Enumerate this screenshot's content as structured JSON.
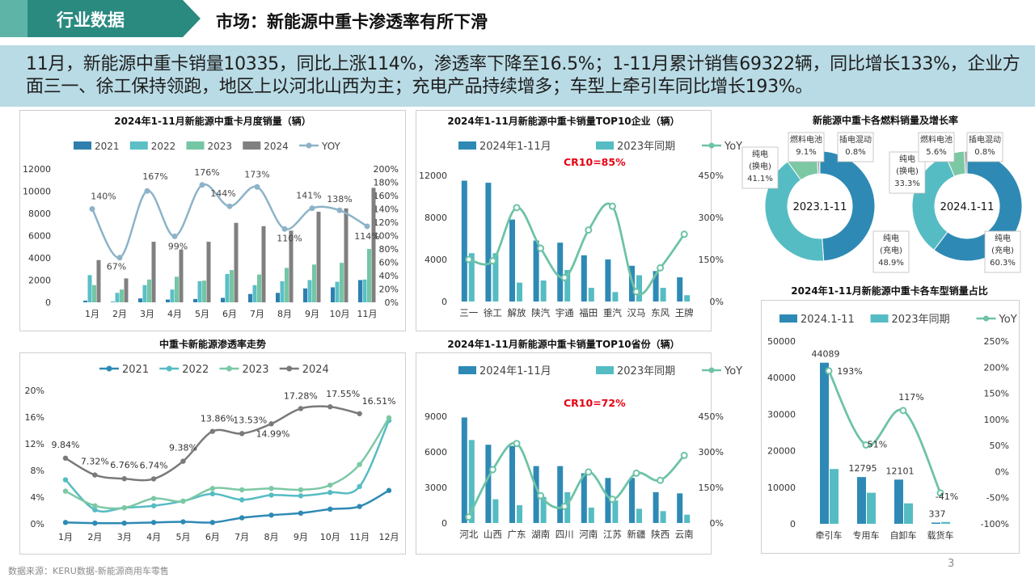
{
  "header": {
    "section_tag": "行业数据",
    "title": "市场：新能源中重卡渗透率有所下滑"
  },
  "summary": "11月，新能源中重卡销量10335，同比上涨114%，渗透率下降至16.5%；1-11月累计销售69322辆，同比增长133%，企业方面三一、徐工保持领跑，地区上以河北山西为主；充电产品持续增多；车型上牵引车同比增长193%。",
  "footer": {
    "source": "数据来源：KERU数据-新能源商用车零售",
    "page": "3"
  },
  "colors": {
    "c2021": "#2e7fae",
    "c2022": "#5bbfc6",
    "c2023": "#74c6a4",
    "c2024": "#808080",
    "yoy": "#8db3c8",
    "bar_dark": "#2e8ab5",
    "bar_light": "#56bcc3",
    "line_green": "#6dc3a5",
    "pen2021": "#2e8ab5",
    "pen2022": "#56bcc3",
    "pen2023": "#7cc8a5",
    "pen2024": "#7a7a7a",
    "tag_dark": "#2a8a80",
    "tag_light": "#5fb4a8",
    "highlight": "#e60012"
  },
  "chart_data": [
    {
      "id": "monthly",
      "type": "bar",
      "title": "2024年1-11月新能源中重卡月度销量（辆）",
      "categories": [
        "1月",
        "2月",
        "3月",
        "4月",
        "5月",
        "6月",
        "7月",
        "8月",
        "9月",
        "10月",
        "11月"
      ],
      "series": [
        {
          "name": "2021",
          "values": [
            150,
            50,
            350,
            250,
            300,
            400,
            750,
            850,
            1250,
            1350,
            2000
          ]
        },
        {
          "name": "2022",
          "values": [
            2450,
            850,
            1550,
            1150,
            1900,
            2550,
            1550,
            1900,
            2000,
            1850,
            2050
          ]
        },
        {
          "name": "2023",
          "values": [
            1550,
            1150,
            2050,
            2300,
            1950,
            2900,
            2500,
            3100,
            3400,
            3550,
            4800
          ]
        },
        {
          "name": "2024",
          "values": [
            3800,
            2150,
            5450,
            4750,
            5450,
            7150,
            6850,
            6450,
            8150,
            8450,
            10300
          ]
        }
      ],
      "yoy": {
        "name": "YOY",
        "values": [
          140,
          67,
          167,
          99,
          176,
          144,
          173,
          110,
          141,
          138,
          114
        ]
      },
      "yoy_labels": [
        "140%",
        "67%",
        "167%",
        "99%",
        "176%",
        "144%",
        "173%",
        "110%",
        "141%",
        "138%",
        "114%"
      ],
      "y_ticks": [
        "0",
        "2000",
        "4000",
        "6000",
        "8000",
        "10000",
        "12000"
      ],
      "y2_ticks": [
        "0%",
        "20%",
        "40%",
        "60%",
        "80%",
        "100%",
        "120%",
        "140%",
        "160%",
        "180%",
        "200%"
      ],
      "ylim": [
        0,
        12000
      ],
      "y2lim": [
        0,
        200
      ]
    },
    {
      "id": "top10_company",
      "type": "bar",
      "title": "2024年1-11月新能源中重卡销量TOP10企业（辆）",
      "annotation": "CR10=85%",
      "categories": [
        "三一",
        "徐工",
        "解放",
        "陕汽",
        "宇通",
        "福田",
        "重汽",
        "汉马",
        "东风",
        "王牌"
      ],
      "series": [
        {
          "name": "2024年1-11月",
          "values": [
            11500,
            11300,
            7800,
            5800,
            5600,
            4400,
            4000,
            3400,
            2900,
            2300
          ]
        },
        {
          "name": "2023年同期",
          "values": [
            4600,
            4600,
            1800,
            2000,
            3000,
            1300,
            900,
            2500,
            1300,
            600
          ]
        }
      ],
      "yoy": {
        "name": "YoY",
        "values": [
          150,
          145,
          335,
          190,
          85,
          255,
          340,
          35,
          120,
          240
        ]
      },
      "y_ticks": [
        "0",
        "4000",
        "8000",
        "12000"
      ],
      "y2_ticks": [
        "0%",
        "150%",
        "300%",
        "450%"
      ],
      "ylim": [
        0,
        12000
      ],
      "y2lim": [
        0,
        450
      ]
    },
    {
      "id": "fuel",
      "type": "pie",
      "title": "新能源中重卡各燃料销量及增长率",
      "donuts": [
        {
          "center": "2023.1-11",
          "slices": [
            {
              "label": [
                "纯电",
                "(充电)",
                "48.9%"
              ],
              "value": 48.9
            },
            {
              "label": [
                "纯电",
                "(换电)",
                "41.1%"
              ],
              "value": 41.1
            },
            {
              "label": [
                "燃料电池",
                "9.1%"
              ],
              "value": 9.1
            },
            {
              "label": [
                "插电混动",
                "0.8%"
              ],
              "value": 0.8
            }
          ]
        },
        {
          "center": "2024.1-11",
          "slices": [
            {
              "label": [
                "纯电",
                "(充电)",
                "60.3%"
              ],
              "value": 60.3
            },
            {
              "label": [
                "纯电",
                "(换电)",
                "33.3%"
              ],
              "value": 33.3
            },
            {
              "label": [
                "燃料电池",
                "5.6%"
              ],
              "value": 5.6
            },
            {
              "label": [
                "插电混动",
                "0.8%"
              ],
              "value": 0.8
            }
          ]
        }
      ]
    },
    {
      "id": "penetration",
      "type": "line",
      "title": "中重卡新能源渗透率走势",
      "categories": [
        "1月",
        "2月",
        "3月",
        "4月",
        "5月",
        "6月",
        "7月",
        "8月",
        "9月",
        "10月",
        "11月",
        "12月"
      ],
      "series": [
        {
          "name": "2021",
          "values": [
            0.2,
            0.1,
            0.1,
            0.2,
            0.3,
            0.2,
            0.9,
            1.3,
            1.6,
            2.2,
            2.6,
            5.0
          ]
        },
        {
          "name": "2022",
          "values": [
            6.6,
            2.1,
            2.4,
            2.7,
            3.4,
            4.5,
            3.6,
            4.3,
            4.2,
            4.7,
            5.6,
            15.5
          ]
        },
        {
          "name": "2023",
          "values": [
            4.9,
            2.7,
            2.4,
            3.8,
            3.4,
            5.3,
            5.1,
            5.3,
            5.1,
            5.8,
            8.9,
            15.9
          ]
        },
        {
          "name": "2024",
          "values": [
            9.84,
            7.32,
            6.76,
            6.74,
            9.38,
            13.86,
            13.53,
            14.99,
            17.28,
            17.55,
            16.51,
            null
          ]
        }
      ],
      "labels_2024": [
        "9.84%",
        "7.32%",
        "6.76%",
        "6.74%",
        "9.38%",
        "13.86%",
        "13.53%",
        "14.99%",
        "17.28%",
        "17.55%",
        "16.51%"
      ],
      "y_ticks": [
        "0%",
        "4%",
        "8%",
        "12%",
        "16%",
        "20%"
      ],
      "ylim": [
        0,
        20
      ]
    },
    {
      "id": "top10_province",
      "type": "bar",
      "title": "2024年1-11月新能源中重卡销量TOP10省份（辆）",
      "annotation": "CR10=72%",
      "categories": [
        "河北",
        "山西",
        "广东",
        "湖南",
        "四川",
        "河南",
        "江苏",
        "新疆",
        "陕西",
        "云南"
      ],
      "series": [
        {
          "name": "2024年1-11月",
          "values": [
            8900,
            6600,
            6500,
            4800,
            4800,
            4200,
            3800,
            3800,
            2600,
            2500
          ]
        },
        {
          "name": "2023年同期",
          "values": [
            7000,
            2000,
            1500,
            2200,
            2600,
            1300,
            1900,
            1200,
            1000,
            700
          ]
        }
      ],
      "yoy": {
        "name": "YoY",
        "values": [
          25,
          225,
          335,
          115,
          70,
          215,
          100,
          210,
          180,
          285
        ]
      },
      "y_ticks": [
        "0",
        "3000",
        "6000",
        "9000"
      ],
      "y2_ticks": [
        "0%",
        "150%",
        "300%",
        "450%"
      ],
      "ylim": [
        0,
        9000
      ],
      "y2lim": [
        0,
        450
      ]
    },
    {
      "id": "vehicle_type",
      "type": "bar",
      "title": "2024年1-11月新能源中重卡各车型销量占比",
      "categories": [
        "牵引车",
        "专用车",
        "自卸车",
        "载货车"
      ],
      "series": [
        {
          "name": "2024.1-11",
          "values": [
            44089,
            12795,
            12101,
            337
          ]
        },
        {
          "name": "2023年同期",
          "values": [
            15000,
            8500,
            5600,
            500
          ]
        }
      ],
      "bar_labels": [
        "44089",
        "12795",
        "12101",
        "337"
      ],
      "yoy": {
        "name": "YoY",
        "values": [
          193,
          51,
          117,
          -41
        ]
      },
      "yoy_labels": [
        "193%",
        "51%",
        "117%",
        "-41%"
      ],
      "y_ticks": [
        "0",
        "10000",
        "20000",
        "30000",
        "40000",
        "50000"
      ],
      "y2_ticks": [
        "-100%",
        "-50%",
        "0%",
        "50%",
        "100%",
        "150%",
        "200%",
        "250%"
      ],
      "ylim": [
        0,
        50000
      ],
      "y2lim": [
        -100,
        250
      ]
    }
  ]
}
